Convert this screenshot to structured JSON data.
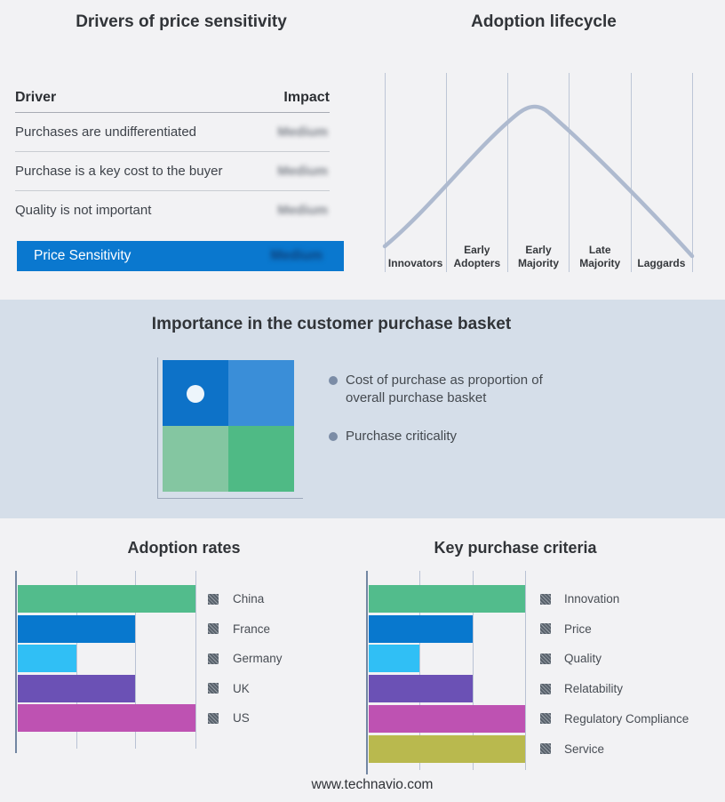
{
  "page": {
    "footer_url": "www.technavio.com"
  },
  "drivers_panel": {
    "title": "Drivers of price sensitivity",
    "columns": {
      "driver": "Driver",
      "impact": "Impact"
    },
    "rows": [
      {
        "driver": "Purchases are undifferentiated",
        "impact": "Medium",
        "impact_blurred": true
      },
      {
        "driver": "Purchase is a key cost to the buyer",
        "impact": "Medium",
        "impact_blurred": true
      },
      {
        "driver": "Quality is not important",
        "impact": "Medium",
        "impact_blurred": true
      }
    ],
    "highlight_row": {
      "label": "Price Sensitivity",
      "impact": "Medium",
      "impact_blurred": true,
      "bg_color": "#0A78CF"
    }
  },
  "lifecycle_panel": {
    "title": "Adoption lifecycle",
    "stages": [
      "Innovators",
      "Early Adopters",
      "Early Majority",
      "Late Majority",
      "Laggards"
    ],
    "curve_color": "#AEBACF",
    "gridline_color": "#BDC6D6"
  },
  "basket_panel": {
    "title": "Importance in the customer purchase basket",
    "band_color": "#D5DEE9",
    "matrix": {
      "quadrants": [
        {
          "name": "top-left",
          "color": "#0D72C8",
          "has_marker": true
        },
        {
          "name": "top-right",
          "color": "#3A8ED8",
          "has_marker": false
        },
        {
          "name": "bottom-left",
          "color": "#84C6A1",
          "has_marker": false
        },
        {
          "name": "bottom-right",
          "color": "#4FBA85",
          "has_marker": false
        }
      ],
      "marker_color": "#EDF5FB"
    },
    "bullets": [
      "Cost of purchase as proportion of overall purchase basket",
      "Purchase criticality"
    ]
  },
  "chart_data": [
    {
      "type": "table",
      "title": "Drivers of price sensitivity",
      "columns": [
        "Driver",
        "Impact"
      ],
      "rows": [
        [
          "Purchases are undifferentiated",
          "Medium"
        ],
        [
          "Purchase is a key cost to the buyer",
          "Medium"
        ],
        [
          "Quality is not important",
          "Medium"
        ],
        [
          "Price Sensitivity",
          "Medium"
        ]
      ],
      "note": "Impact values appear blurred/redacted in the source image"
    },
    {
      "type": "line",
      "title": "Adoption lifecycle",
      "categories": [
        "Innovators",
        "Early Adopters",
        "Early Majority",
        "Late Majority",
        "Laggards"
      ],
      "shape": "bell curve rising from Innovators, peaking at Early Majority, falling to Laggards",
      "grid": "vertical stage dividers, no y-axis values"
    },
    {
      "type": "bar",
      "title": "Adoption rates",
      "orientation": "horizontal",
      "categories": [
        "China",
        "France",
        "Germany",
        "UK",
        "US"
      ],
      "values": [
        3,
        2,
        1,
        2,
        3
      ],
      "xlim": [
        0,
        3
      ],
      "bar_colors": [
        "#52BC8C",
        "#0878CE",
        "#30BFF5",
        "#6B51B5",
        "#BE52B2"
      ],
      "legend_position": "right",
      "legend_swatch_style": "gray diagonal hatch"
    },
    {
      "type": "bar",
      "title": "Key purchase criteria",
      "orientation": "horizontal",
      "categories": [
        "Innovation",
        "Price",
        "Quality",
        "Relatability",
        "Regulatory Compliance",
        "Service"
      ],
      "values": [
        3,
        2,
        1,
        2,
        3,
        3
      ],
      "xlim": [
        0,
        3
      ],
      "bar_colors": [
        "#52BC8C",
        "#0878CE",
        "#30BFF5",
        "#6B51B5",
        "#BE52B2",
        "#B9B94E"
      ],
      "legend_position": "right",
      "legend_swatch_style": "gray diagonal hatch"
    }
  ]
}
